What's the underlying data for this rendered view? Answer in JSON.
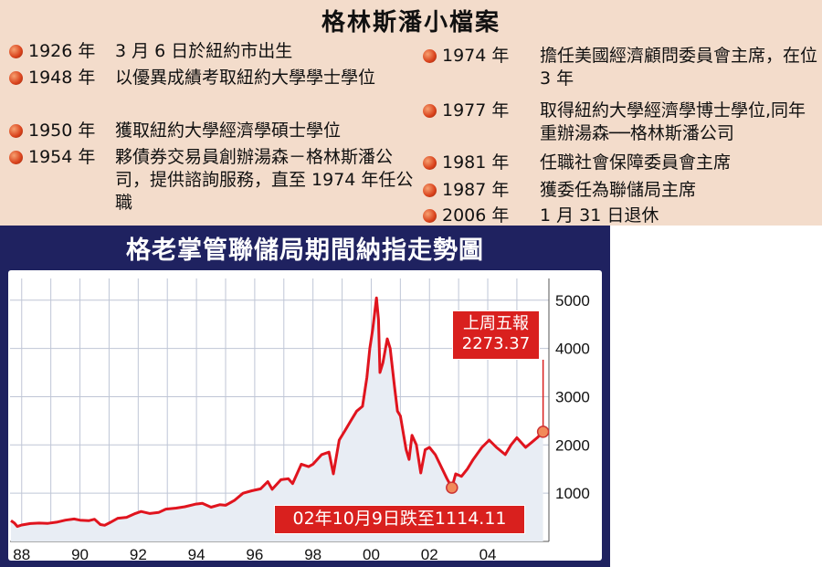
{
  "profile": {
    "title": "格林斯潘小檔案",
    "left_items": [
      {
        "year": "1926 年",
        "text": "3 月 6 日於紐約市出生"
      },
      {
        "year": "1948 年",
        "text": "以優異成績考取紐約大學學士學位"
      },
      {
        "year": "1950 年",
        "text": "獲取紐約大學經濟學碩士學位"
      },
      {
        "year": "1954 年",
        "text": "夥債券交易員創辦湯森－格林斯潘公司，提供諮詢服務，直至 1974 年任公職"
      }
    ],
    "right_items": [
      {
        "year": "1974 年",
        "text": "擔任美國經濟顧問委員會主席，在位 3 年"
      },
      {
        "year": "1977 年",
        "text": "取得紐約大學經濟學博士學位,同年重辦湯森──格林斯潘公司"
      },
      {
        "year": "1981 年",
        "text": "任職社會保障委員會主席"
      },
      {
        "year": "1987 年",
        "text": "獲委任為聯儲局主席"
      },
      {
        "year": "2006 年",
        "text": "1 月 31 日退休"
      }
    ]
  },
  "chart_data": {
    "type": "area",
    "title": "格老掌管聯儲局期間納指走勢圖",
    "xlabel": "",
    "ylabel": "",
    "x_tick_labels": [
      "88",
      "90",
      "92",
      "94",
      "96",
      "98",
      "00",
      "02",
      "04"
    ],
    "y_tick_labels": [
      "1000",
      "2000",
      "3000",
      "4000",
      "5000"
    ],
    "xlim": [
      1987.6,
      2006.1
    ],
    "ylim": [
      0,
      5450
    ],
    "grid": true,
    "series": [
      {
        "values": [
          [
            1987.63,
            430
          ],
          [
            1987.75,
            380
          ],
          [
            1987.85,
            310
          ],
          [
            1988.0,
            340
          ],
          [
            1988.3,
            370
          ],
          [
            1988.6,
            380
          ],
          [
            1988.9,
            375
          ],
          [
            1989.2,
            400
          ],
          [
            1989.5,
            440
          ],
          [
            1989.8,
            465
          ],
          [
            1990.0,
            440
          ],
          [
            1990.3,
            430
          ],
          [
            1990.5,
            460
          ],
          [
            1990.7,
            350
          ],
          [
            1990.85,
            335
          ],
          [
            1991.0,
            380
          ],
          [
            1991.3,
            480
          ],
          [
            1991.6,
            500
          ],
          [
            1991.9,
            580
          ],
          [
            1992.1,
            620
          ],
          [
            1992.4,
            580
          ],
          [
            1992.7,
            600
          ],
          [
            1992.95,
            670
          ],
          [
            1993.3,
            690
          ],
          [
            1993.6,
            720
          ],
          [
            1993.95,
            770
          ],
          [
            1994.2,
            790
          ],
          [
            1994.5,
            710
          ],
          [
            1994.8,
            760
          ],
          [
            1995.0,
            750
          ],
          [
            1995.3,
            850
          ],
          [
            1995.6,
            1000
          ],
          [
            1995.9,
            1050
          ],
          [
            1996.2,
            1090
          ],
          [
            1996.45,
            1240
          ],
          [
            1996.6,
            1080
          ],
          [
            1996.9,
            1280
          ],
          [
            1997.15,
            1300
          ],
          [
            1997.3,
            1200
          ],
          [
            1997.6,
            1600
          ],
          [
            1997.85,
            1550
          ],
          [
            1998.0,
            1600
          ],
          [
            1998.3,
            1800
          ],
          [
            1998.55,
            1850
          ],
          [
            1998.7,
            1400
          ],
          [
            1998.9,
            2100
          ],
          [
            1999.1,
            2300
          ],
          [
            1999.3,
            2500
          ],
          [
            1999.5,
            2700
          ],
          [
            1999.7,
            2800
          ],
          [
            1999.85,
            3400
          ],
          [
            1999.95,
            4000
          ],
          [
            2000.05,
            4400
          ],
          [
            2000.18,
            5048
          ],
          [
            2000.25,
            4600
          ],
          [
            2000.3,
            3500
          ],
          [
            2000.4,
            3700
          ],
          [
            2000.55,
            4200
          ],
          [
            2000.65,
            4000
          ],
          [
            2000.8,
            3200
          ],
          [
            2000.9,
            2700
          ],
          [
            2001.0,
            2600
          ],
          [
            2001.2,
            1900
          ],
          [
            2001.3,
            1700
          ],
          [
            2001.4,
            2200
          ],
          [
            2001.55,
            2000
          ],
          [
            2001.7,
            1420
          ],
          [
            2001.85,
            1900
          ],
          [
            2002.0,
            1950
          ],
          [
            2002.2,
            1800
          ],
          [
            2002.4,
            1550
          ],
          [
            2002.6,
            1300
          ],
          [
            2002.77,
            1114.11
          ],
          [
            2002.9,
            1400
          ],
          [
            2003.1,
            1350
          ],
          [
            2003.3,
            1500
          ],
          [
            2003.5,
            1700
          ],
          [
            2003.8,
            1950
          ],
          [
            2004.05,
            2100
          ],
          [
            2004.3,
            1950
          ],
          [
            2004.6,
            1800
          ],
          [
            2004.8,
            2000
          ],
          [
            2005.0,
            2150
          ],
          [
            2005.3,
            1950
          ],
          [
            2005.5,
            2050
          ],
          [
            2005.7,
            2150
          ],
          [
            2005.9,
            2273.37
          ]
        ]
      }
    ],
    "annotations": [
      {
        "text": "上周五報 2273.37",
        "x": 2005.9,
        "y": 2273.37
      },
      {
        "text": "02年10月9日跌至1114.11",
        "x": 2002.77,
        "y": 1114.11
      }
    ],
    "colors": {
      "line": "#e0141e",
      "fill": "#e8edf4",
      "grid": "#bfc6d6",
      "panel": "#1f2260",
      "annotation_bg": "#d9201e"
    }
  }
}
